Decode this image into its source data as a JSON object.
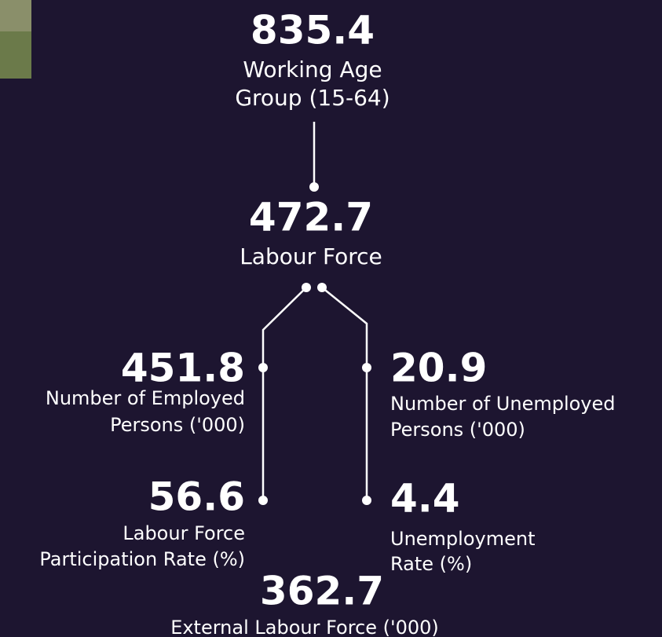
{
  "nodes": [
    {
      "value": 835.4,
      "label": [
        "Working Age",
        "Group (15-64)"
      ]
    },
    {
      "value": 472.7,
      "label": [
        "Labour Force"
      ]
    },
    {
      "value": 451.8,
      "label": [
        "Number of Employed",
        "Persons ('000)"
      ]
    },
    {
      "value": 20.9,
      "label": [
        "Number of Unemployed",
        "Persons ('000)"
      ]
    },
    {
      "value": 56.6,
      "label": [
        "Labour Force",
        "Participation Rate (%)"
      ]
    },
    {
      "value": 4.4,
      "label": [
        "Unemployment",
        "Rate (%)"
      ]
    },
    {
      "value": 362.7,
      "label": [
        "External Labour Force ('000)"
      ]
    }
  ]
}
